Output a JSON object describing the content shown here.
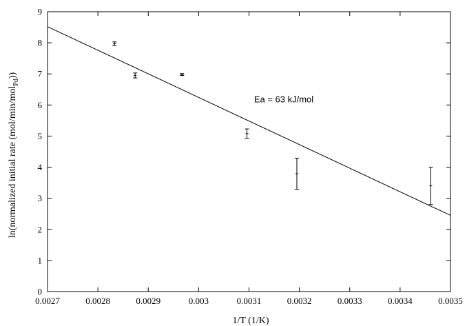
{
  "chart_data": {
    "type": "scatter",
    "title": "",
    "xlabel": "1/T (1/K)",
    "ylabel": "ln(normalized initial rate (mol/min/mol",
    "ylabel_sub": "Pd",
    "ylabel_tail": "))",
    "xlim": [
      0.0027,
      0.0035
    ],
    "ylim": [
      0,
      9
    ],
    "x_ticks": [
      {
        "v": 0.0027,
        "label": "0.0027"
      },
      {
        "v": 0.0028,
        "label": "0.0028"
      },
      {
        "v": 0.0029,
        "label": "0.0029"
      },
      {
        "v": 0.003,
        "label": "0.003"
      },
      {
        "v": 0.0031,
        "label": "0.0031"
      },
      {
        "v": 0.0032,
        "label": "0.0032"
      },
      {
        "v": 0.0033,
        "label": "0.0033"
      },
      {
        "v": 0.0034,
        "label": "0.0034"
      },
      {
        "v": 0.0035,
        "label": "0.0035"
      }
    ],
    "y_ticks": [
      {
        "v": 0,
        "label": "0"
      },
      {
        "v": 1,
        "label": "1"
      },
      {
        "v": 2,
        "label": "2"
      },
      {
        "v": 3,
        "label": "3"
      },
      {
        "v": 4,
        "label": "4"
      },
      {
        "v": 5,
        "label": "5"
      },
      {
        "v": 6,
        "label": "6"
      },
      {
        "v": 7,
        "label": "7"
      },
      {
        "v": 8,
        "label": "8"
      },
      {
        "v": 9,
        "label": "9"
      }
    ],
    "points": [
      {
        "x": 0.002833,
        "y": 7.97,
        "yerr": 0.06
      },
      {
        "x": 0.002874,
        "y": 6.95,
        "yerr": 0.08
      },
      {
        "x": 0.002967,
        "y": 6.98,
        "yerr": 0.03
      },
      {
        "x": 0.003096,
        "y": 5.08,
        "yerr": 0.15
      },
      {
        "x": 0.003195,
        "y": 3.79,
        "yerr": 0.5
      },
      {
        "x": 0.003461,
        "y": 3.4,
        "yerr": 0.6
      }
    ],
    "fit_line": {
      "x": [
        0.0027,
        0.0035
      ],
      "y": [
        8.52,
        2.45
      ]
    },
    "annotation": {
      "text": "Ea = 63 kJ/mol",
      "x": 0.00311,
      "y": 6.08
    },
    "grid": false,
    "legend": "none"
  }
}
